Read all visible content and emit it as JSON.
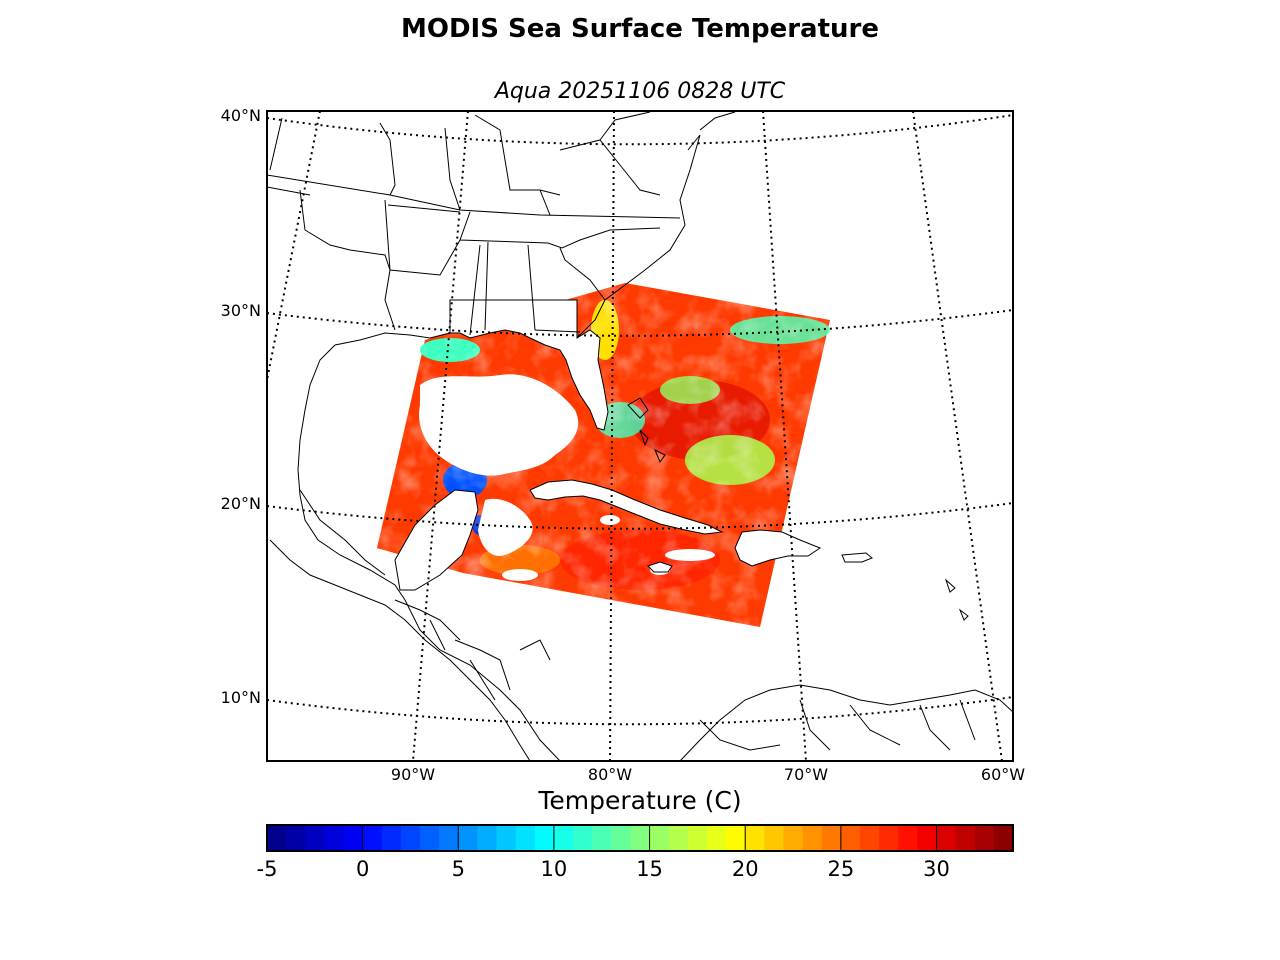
{
  "title": "MODIS Sea Surface Temperature",
  "subtitle": "Aqua 20251106 0828 UTC",
  "map": {
    "lat_labels": [
      "40°N",
      "30°N",
      "20°N",
      "10°N"
    ],
    "lon_labels": [
      "90°W",
      "80°W",
      "70°W",
      "60°W"
    ],
    "sst_swath_colors": [
      "#ff4000",
      "#ff2a00",
      "#ff6a00",
      "#a8ff4e",
      "#3cffc0",
      "#ffe000",
      "#0050ff"
    ],
    "cloud_color": "#ffffff"
  },
  "colorbar": {
    "label": "Temperature (C)",
    "min": -5,
    "max": 34,
    "ticks": [
      "-5",
      "0",
      "5",
      "10",
      "15",
      "20",
      "25",
      "30"
    ],
    "tick_values": [
      -5,
      0,
      5,
      10,
      15,
      20,
      25,
      30
    ],
    "colormap": "jet"
  }
}
